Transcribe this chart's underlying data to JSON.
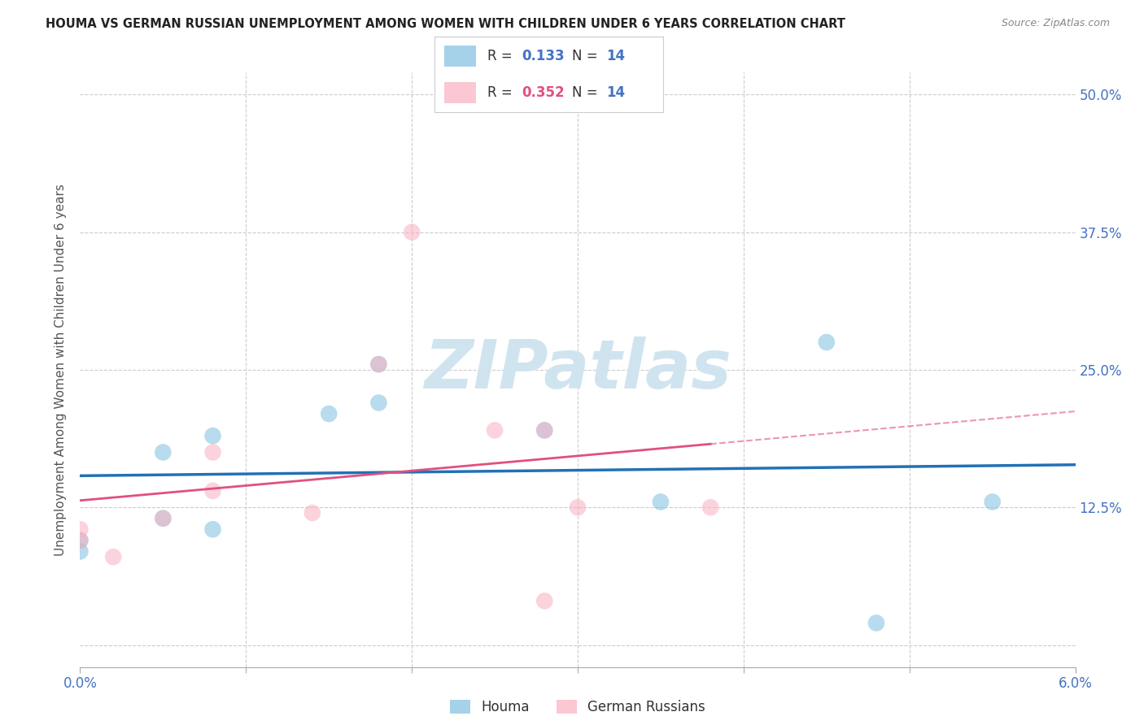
{
  "title": "HOUMA VS GERMAN RUSSIAN UNEMPLOYMENT AMONG WOMEN WITH CHILDREN UNDER 6 YEARS CORRELATION CHART",
  "source": "Source: ZipAtlas.com",
  "ylabel": "Unemployment Among Women with Children Under 6 years",
  "xlim": [
    0.0,
    0.06
  ],
  "ylim": [
    -0.02,
    0.52
  ],
  "xticks": [
    0.0,
    0.01,
    0.02,
    0.03,
    0.04,
    0.05,
    0.06
  ],
  "xtick_labels": [
    "0.0%",
    "",
    "",
    "",
    "",
    "",
    "6.0%"
  ],
  "yticks": [
    0.0,
    0.125,
    0.25,
    0.375,
    0.5
  ],
  "ytick_labels": [
    "",
    "12.5%",
    "25.0%",
    "37.5%",
    "50.0%"
  ],
  "houma_R": 0.133,
  "houma_N": 14,
  "german_R": 0.352,
  "german_N": 14,
  "houma_x": [
    0.0,
    0.0,
    0.005,
    0.005,
    0.008,
    0.008,
    0.015,
    0.018,
    0.018,
    0.028,
    0.035,
    0.045,
    0.048,
    0.055
  ],
  "houma_y": [
    0.095,
    0.085,
    0.115,
    0.175,
    0.19,
    0.105,
    0.21,
    0.255,
    0.22,
    0.195,
    0.13,
    0.275,
    0.02,
    0.13
  ],
  "german_russian_x": [
    0.0,
    0.0,
    0.002,
    0.005,
    0.008,
    0.008,
    0.014,
    0.018,
    0.02,
    0.025,
    0.028,
    0.03,
    0.038,
    0.028
  ],
  "german_russian_y": [
    0.095,
    0.105,
    0.08,
    0.115,
    0.14,
    0.175,
    0.12,
    0.255,
    0.375,
    0.195,
    0.195,
    0.125,
    0.125,
    0.04
  ],
  "houma_color": "#7fbfdf",
  "german_russian_color": "#f9b0c0",
  "houma_line_color": "#2171b5",
  "german_russian_line_color": "#e05080",
  "watermark_text": "ZIPatlas",
  "watermark_color": "#d0e4f0",
  "background_color": "#ffffff",
  "grid_color": "#cccccc",
  "tick_color": "#4472c4",
  "title_color": "#222222",
  "source_color": "#888888"
}
